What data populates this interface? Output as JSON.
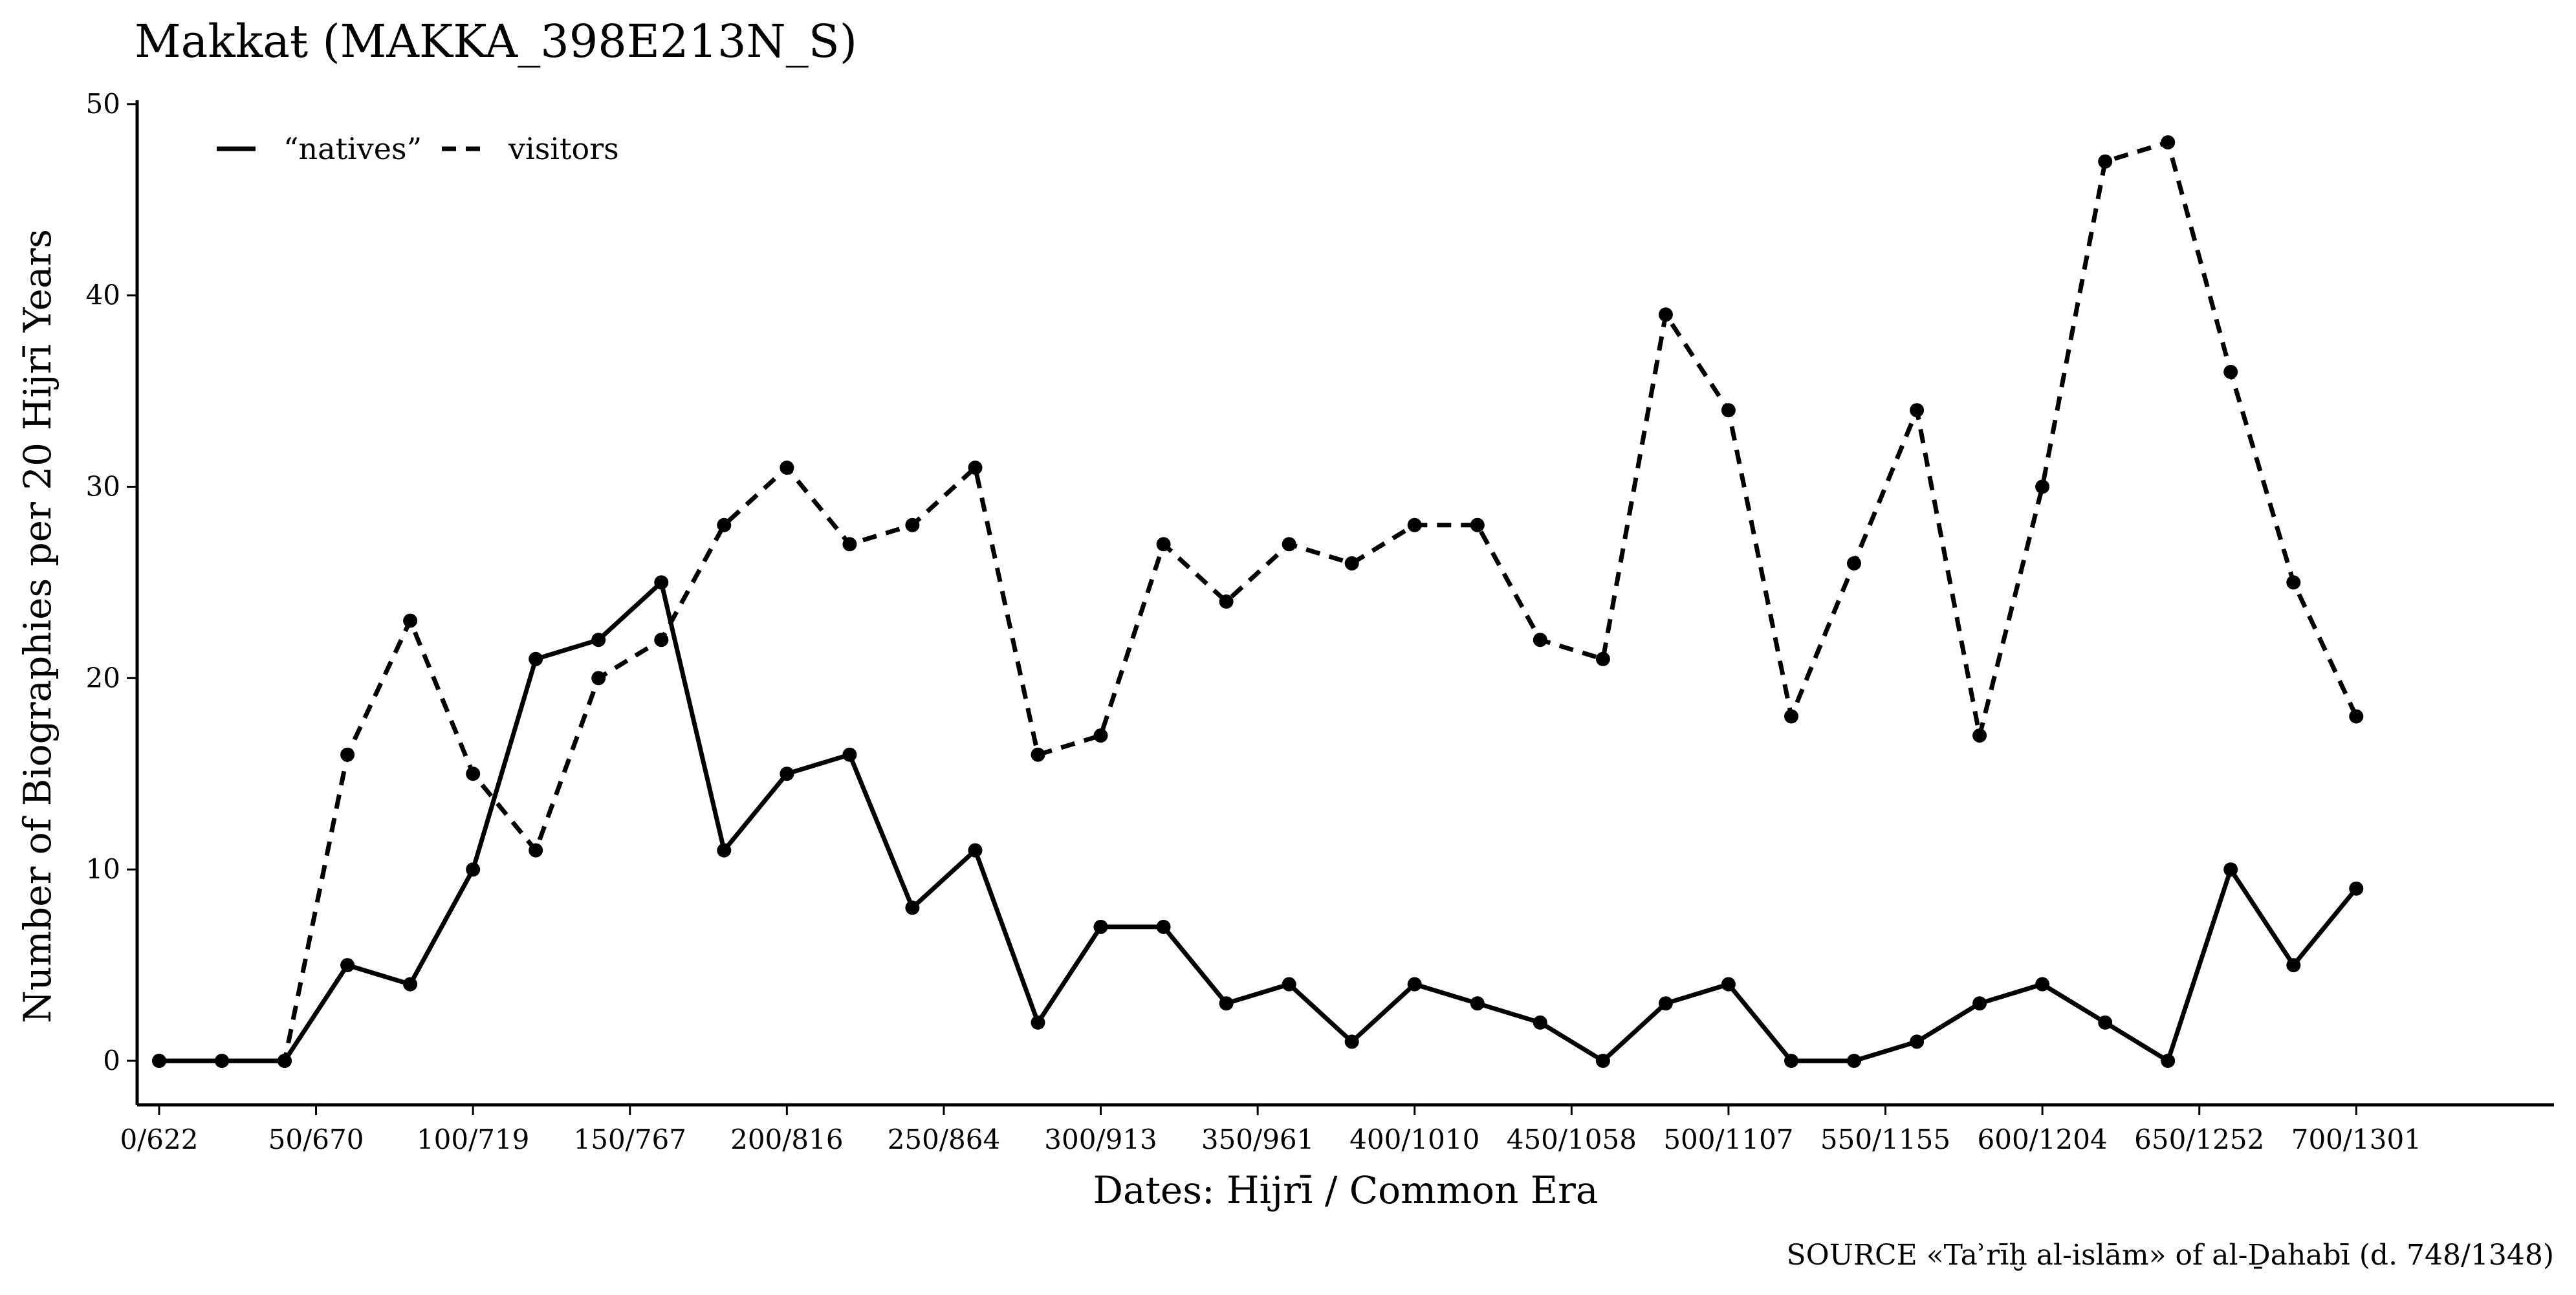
{
  "chart_data": {
    "type": "line",
    "title": "Makkaŧ (MAKKA_398E213N_S)",
    "xlabel": "Dates: Hijrī / Common Era",
    "ylabel": "Number of Biographies per 20 Hijrī Years",
    "caption": "SOURCE «Taʾrīḫ al-islām» of al-Ḏahabī (d. 748/1348)",
    "xlim": [
      -7,
      763
    ],
    "ylim": [
      -2.3,
      50.2
    ],
    "x_ticks": [
      {
        "value": 0,
        "label": "0/622"
      },
      {
        "value": 50,
        "label": "50/670"
      },
      {
        "value": 100,
        "label": "100/719"
      },
      {
        "value": 150,
        "label": "150/767"
      },
      {
        "value": 200,
        "label": "200/816"
      },
      {
        "value": 250,
        "label": "250/864"
      },
      {
        "value": 300,
        "label": "300/913"
      },
      {
        "value": 350,
        "label": "350/961"
      },
      {
        "value": 400,
        "label": "400/1010"
      },
      {
        "value": 450,
        "label": "450/1058"
      },
      {
        "value": 500,
        "label": "500/1107"
      },
      {
        "value": 550,
        "label": "550/1155"
      },
      {
        "value": 600,
        "label": "600/1204"
      },
      {
        "value": 650,
        "label": "650/1252"
      },
      {
        "value": 700,
        "label": "700/1301"
      }
    ],
    "y_ticks": [
      {
        "value": 0,
        "label": "0"
      },
      {
        "value": 10,
        "label": "10"
      },
      {
        "value": 20,
        "label": "20"
      },
      {
        "value": 30,
        "label": "30"
      },
      {
        "value": 40,
        "label": "40"
      },
      {
        "value": 50,
        "label": "50"
      }
    ],
    "grid": false,
    "legend_position": "top-left",
    "x": [
      0,
      20,
      40,
      60,
      80,
      100,
      120,
      140,
      160,
      180,
      200,
      220,
      240,
      260,
      280,
      300,
      320,
      340,
      360,
      380,
      400,
      420,
      440,
      460,
      480,
      500,
      520,
      540,
      560,
      580,
      600,
      620,
      640,
      660,
      680,
      700
    ],
    "series": [
      {
        "name": "“natives”",
        "dash": "solid",
        "color": "#000000",
        "values": [
          0,
          0,
          0,
          5,
          4,
          10,
          21,
          22,
          25,
          11,
          15,
          16,
          8,
          11,
          2,
          7,
          7,
          3,
          4,
          1,
          4,
          3,
          2,
          0,
          3,
          4,
          0,
          0,
          1,
          3,
          4,
          2,
          0,
          10,
          5,
          9
        ]
      },
      {
        "name": "visitors",
        "dash": "dashed",
        "color": "#000000",
        "values": [
          0,
          0,
          0,
          16,
          23,
          15,
          11,
          20,
          22,
          28,
          31,
          27,
          28,
          31,
          16,
          17,
          27,
          24,
          27,
          26,
          28,
          28,
          22,
          21,
          39,
          34,
          18,
          26,
          34,
          17,
          30,
          47,
          48,
          36,
          25,
          18
        ]
      }
    ]
  }
}
